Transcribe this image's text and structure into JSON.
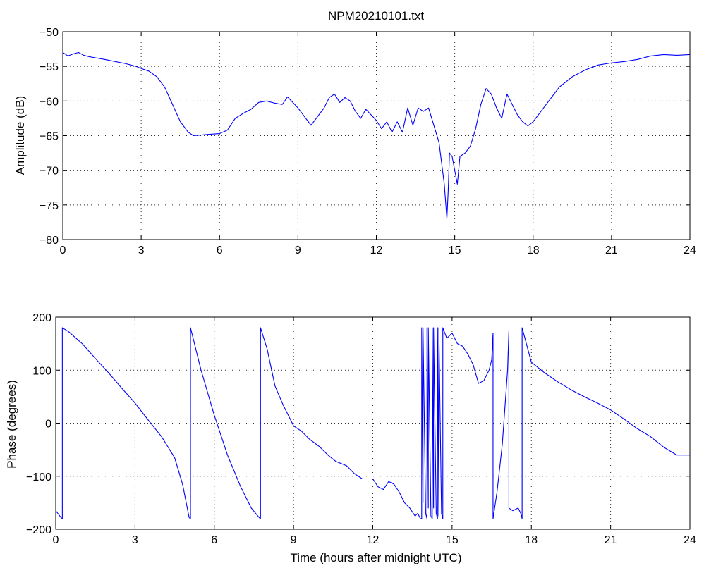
{
  "chart_data": [
    {
      "type": "line",
      "title": "NPM20210101.txt",
      "xlabel": "",
      "ylabel": "Amplitude (dB)",
      "xlim": [
        0,
        24
      ],
      "ylim": [
        -80,
        -50
      ],
      "xticks": [
        0,
        3,
        6,
        9,
        12,
        15,
        18,
        21,
        24
      ],
      "yticks": [
        -80,
        -75,
        -70,
        -65,
        -60,
        -55,
        -50
      ],
      "grid": true,
      "color": "#0000ff",
      "series": [
        {
          "x": [
            0,
            0.2,
            0.4,
            0.6,
            0.8,
            1.0,
            1.3,
            1.6,
            2.0,
            2.4,
            2.8,
            3.0,
            3.3,
            3.6,
            3.9,
            4.2,
            4.5,
            4.8,
            5.0,
            5.3,
            5.6,
            6.0,
            6.3,
            6.6,
            6.9,
            7.2,
            7.5,
            7.8,
            8.1,
            8.4,
            8.6,
            8.8,
            9.0,
            9.3,
            9.5,
            9.8,
            10.0,
            10.2,
            10.4,
            10.6,
            10.8,
            11.0,
            11.2,
            11.4,
            11.6,
            11.8,
            12.0,
            12.2,
            12.4,
            12.6,
            12.8,
            13.0,
            13.2,
            13.4,
            13.6,
            13.8,
            14.0,
            14.2,
            14.4,
            14.5,
            14.6,
            14.7,
            14.75,
            14.8,
            14.9,
            15.0,
            15.1,
            15.2,
            15.4,
            15.6,
            15.8,
            16.0,
            16.2,
            16.4,
            16.6,
            16.8,
            17.0,
            17.2,
            17.4,
            17.6,
            17.8,
            18.0,
            18.3,
            18.6,
            19.0,
            19.5,
            20.0,
            20.5,
            21.0,
            21.5,
            22.0,
            22.5,
            23.0,
            23.5,
            24.0
          ],
          "values": [
            -53.0,
            -53.5,
            -53.2,
            -53.0,
            -53.4,
            -53.6,
            -53.8,
            -54.0,
            -54.3,
            -54.6,
            -55.0,
            -55.3,
            -55.7,
            -56.5,
            -58.0,
            -60.5,
            -63.0,
            -64.5,
            -65.0,
            -64.9,
            -64.8,
            -64.7,
            -64.2,
            -62.5,
            -61.8,
            -61.2,
            -60.2,
            -60.0,
            -60.3,
            -60.5,
            -59.4,
            -60.2,
            -61.0,
            -62.5,
            -63.5,
            -62.0,
            -61.0,
            -59.5,
            -59.0,
            -60.2,
            -59.5,
            -60.0,
            -61.5,
            -62.5,
            -61.2,
            -62.0,
            -62.8,
            -64.0,
            -63.0,
            -64.5,
            -63.0,
            -64.5,
            -61.0,
            -63.5,
            -61.0,
            -61.5,
            -61.0,
            -63.5,
            -66.0,
            -69.0,
            -72.0,
            -77.0,
            -73.0,
            -67.5,
            -68.0,
            -70.0,
            -72.0,
            -68.0,
            -67.5,
            -66.5,
            -64.0,
            -60.5,
            -58.2,
            -59.0,
            -61.0,
            -62.5,
            -59.0,
            -60.5,
            -62.0,
            -63.0,
            -63.6,
            -63.0,
            -61.5,
            -60.0,
            -58.0,
            -56.5,
            -55.5,
            -54.8,
            -54.5,
            -54.3,
            -54.0,
            -53.5,
            -53.3,
            -53.4,
            -53.3
          ]
        }
      ]
    },
    {
      "type": "line",
      "title": "",
      "xlabel": "Time (hours after midnight UTC)",
      "ylabel": "Phase (degrees)",
      "xlim": [
        0,
        24
      ],
      "ylim": [
        -200,
        200
      ],
      "xticks": [
        0,
        3,
        6,
        9,
        12,
        15,
        18,
        21,
        24
      ],
      "yticks": [
        -200,
        -100,
        0,
        100,
        200
      ],
      "grid": true,
      "color": "#0000ff",
      "series": [
        {
          "x": [
            0,
            0.2,
            0.25,
            0.25,
            0.5,
            1.0,
            1.5,
            2.0,
            2.5,
            3.0,
            3.5,
            4.0,
            4.5,
            4.8,
            5.05,
            5.1,
            5.1,
            5.5,
            6.0,
            6.5,
            7.0,
            7.4,
            7.7,
            7.75,
            7.75,
            8.0,
            8.3,
            8.6,
            9.0,
            9.3,
            9.6,
            10.0,
            10.3,
            10.6,
            11.0,
            11.3,
            11.6,
            12.0,
            12.2,
            12.4,
            12.6,
            12.8,
            13.0,
            13.2,
            13.4,
            13.6,
            13.7,
            13.8,
            13.85,
            13.85,
            13.9,
            13.9,
            14.0,
            14.05,
            14.05,
            14.1,
            14.1,
            14.2,
            14.25,
            14.25,
            14.3,
            14.3,
            14.4,
            14.45,
            14.45,
            14.5,
            14.5,
            14.6,
            14.65,
            14.65,
            14.8,
            15.0,
            15.2,
            15.4,
            15.6,
            15.8,
            16.0,
            16.2,
            16.4,
            16.5,
            16.55,
            16.55,
            16.7,
            16.9,
            17.1,
            17.15,
            17.15,
            17.3,
            17.5,
            17.6,
            17.65,
            17.65,
            18.0,
            18.5,
            19.0,
            19.5,
            20.0,
            20.5,
            21.0,
            21.5,
            22.0,
            22.5,
            23.0,
            23.5,
            24.0
          ],
          "values": [
            -165,
            -178,
            -180,
            180,
            172,
            150,
            122,
            95,
            66,
            38,
            6,
            -25,
            -65,
            -115,
            -178,
            -180,
            180,
            100,
            15,
            -60,
            -120,
            -160,
            -178,
            -180,
            180,
            140,
            70,
            35,
            -5,
            -15,
            -30,
            -45,
            -60,
            -72,
            -80,
            -95,
            -105,
            -105,
            -120,
            -125,
            -110,
            -115,
            -130,
            -150,
            -160,
            -175,
            -170,
            -180,
            -180,
            180,
            -150,
            180,
            -170,
            -180,
            180,
            -160,
            180,
            -175,
            -180,
            180,
            -160,
            180,
            -170,
            -180,
            180,
            -175,
            180,
            -170,
            -180,
            180,
            160,
            170,
            150,
            145,
            130,
            110,
            75,
            80,
            100,
            120,
            170,
            -180,
            -130,
            -40,
            100,
            175,
            -160,
            -165,
            -160,
            -170,
            -180,
            180,
            115,
            95,
            78,
            63,
            50,
            38,
            25,
            8,
            -10,
            -25,
            -45,
            -60,
            -60
          ]
        }
      ]
    }
  ]
}
